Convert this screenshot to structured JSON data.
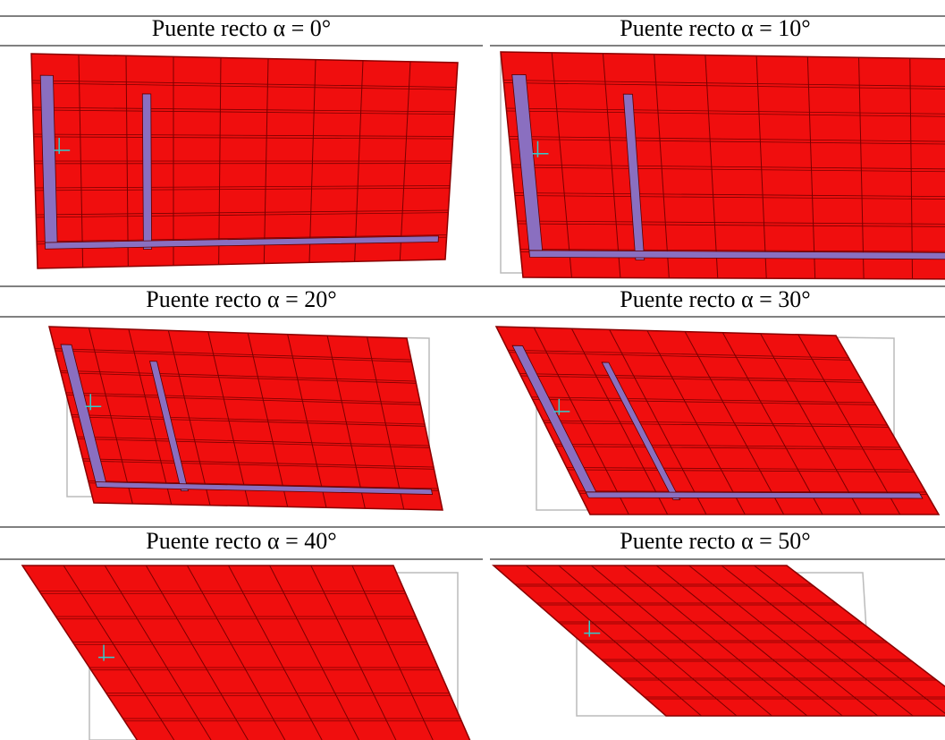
{
  "table": {
    "cells": [
      {
        "caption": "Puente recto α = 0°"
      },
      {
        "caption": "Puente recto α = 10°"
      },
      {
        "caption": "Puente recto α = 20°"
      },
      {
        "caption": "Puente recto α = 30°"
      },
      {
        "caption": "Puente recto α = 40°"
      },
      {
        "caption": "Puente recto α = 50°"
      }
    ]
  }
}
